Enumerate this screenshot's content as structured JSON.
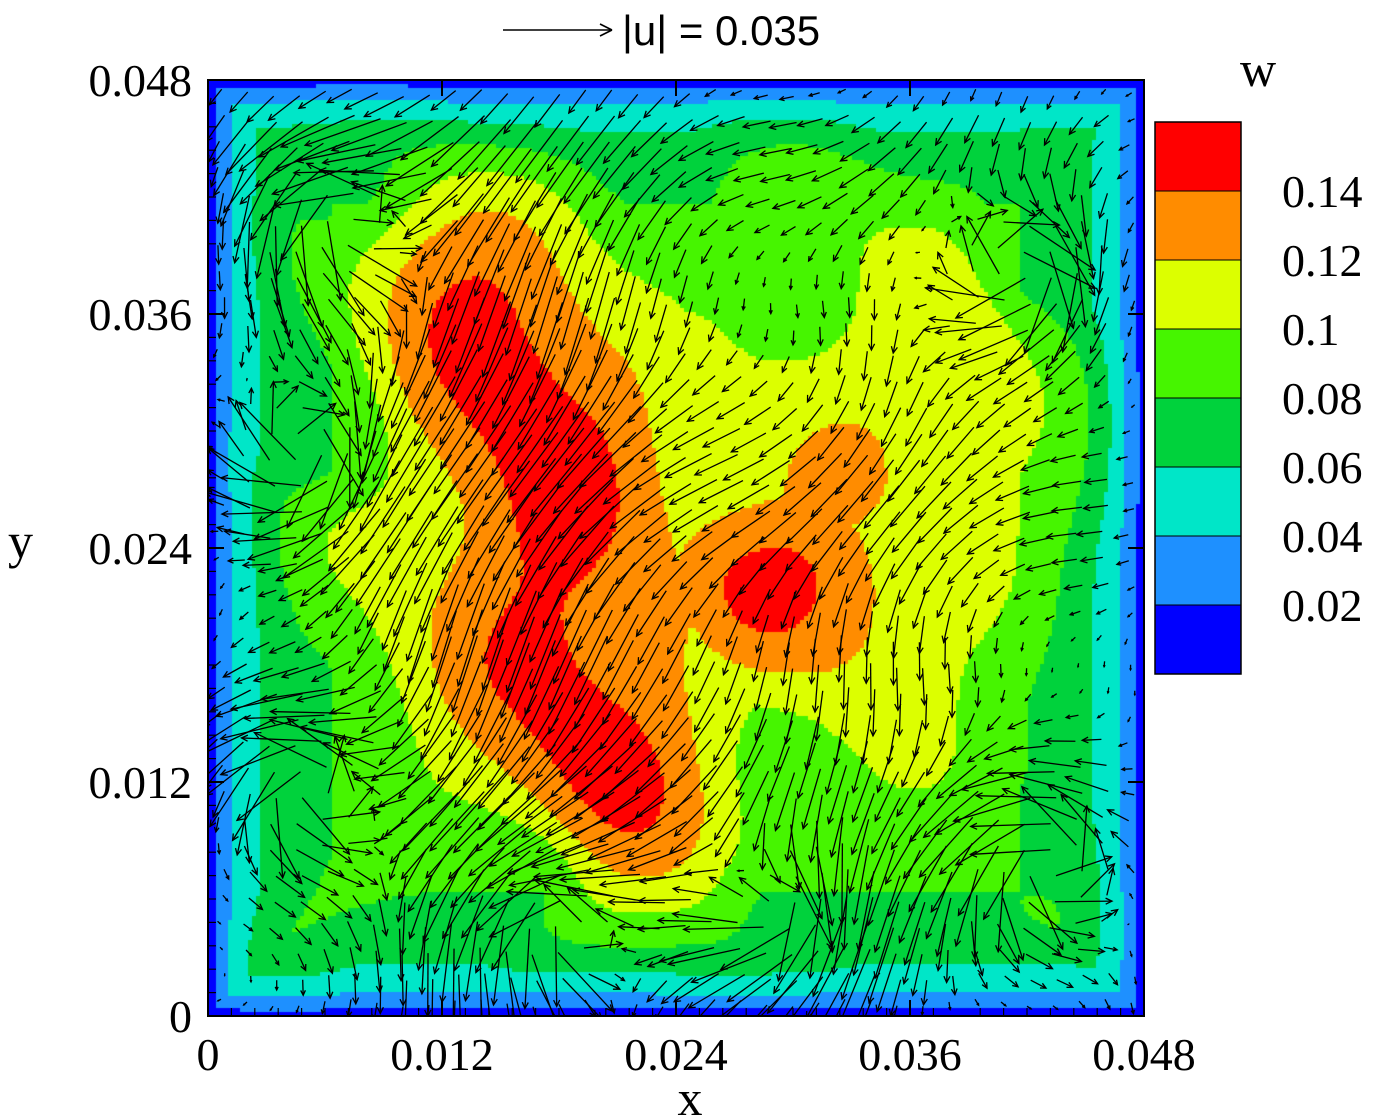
{
  "chart_data": {
    "type": "heatmap",
    "title": "",
    "xlabel": "x",
    "ylabel": "y",
    "xlim": [
      0,
      0.048
    ],
    "ylim": [
      0,
      0.048
    ],
    "x_ticks": [
      "0",
      "0.012",
      "0.024",
      "0.036",
      "0.048"
    ],
    "y_ticks": [
      "0",
      "0.012",
      "0.024",
      "0.036",
      "0.048"
    ],
    "reference_vector": {
      "label": "|u| = 0.035",
      "magnitude": 0.035
    },
    "colorbar": {
      "title": "w",
      "tick_labels": [
        "0.14",
        "0.12",
        "0.1",
        "0.08",
        "0.06",
        "0.04",
        "0.02"
      ],
      "levels": [
        0.01,
        0.02,
        0.04,
        0.06,
        0.08,
        0.1,
        0.12,
        0.14,
        0.16
      ],
      "colors": [
        "#0000ff",
        "#1e90ff",
        "#00e6c8",
        "#00d23c",
        "#46f500",
        "#dcff00",
        "#ff8c00",
        "#ff0000"
      ],
      "legend_placement": "right"
    },
    "field_summary": {
      "wall_value": 0.01,
      "core_value": 0.15,
      "core_region": "diagonal band from bottom-center to upper-left",
      "vectors": "in-plane velocity arrows over the whole domain with recirculating vortices near the walls"
    }
  }
}
